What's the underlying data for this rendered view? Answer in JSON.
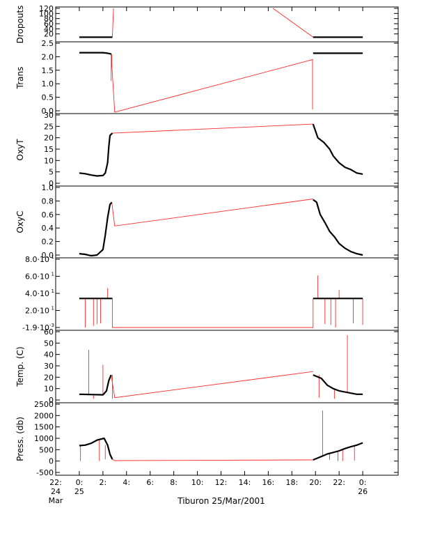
{
  "chart_data": {
    "type": "line",
    "xaxis": {
      "label": "Tiburon 25/Mar/2001",
      "range": [
        -2,
        27
      ],
      "ticks": [
        {
          "x": -2,
          "lines": [
            "22:",
            "24",
            "Mar"
          ]
        },
        {
          "x": 0,
          "lines": [
            "0:",
            "25"
          ]
        },
        {
          "x": 2,
          "lines": [
            "2:"
          ]
        },
        {
          "x": 4,
          "lines": [
            "4:"
          ]
        },
        {
          "x": 6,
          "lines": [
            "6:"
          ]
        },
        {
          "x": 8,
          "lines": [
            "8:"
          ]
        },
        {
          "x": 10,
          "lines": [
            "10:"
          ]
        },
        {
          "x": 12,
          "lines": [
            "12:"
          ]
        },
        {
          "x": 14,
          "lines": [
            "14:"
          ]
        },
        {
          "x": 16,
          "lines": [
            "16:"
          ]
        },
        {
          "x": 18,
          "lines": [
            "18:"
          ]
        },
        {
          "x": 20,
          "lines": [
            "20:"
          ]
        },
        {
          "x": 22,
          "lines": [
            "22:"
          ]
        },
        {
          "x": 24,
          "lines": [
            "0:",
            "26"
          ]
        }
      ]
    },
    "panels": [
      {
        "ylabel": "Dropouts",
        "ylim": [
          0,
          120
        ],
        "ticks": [
          {
            "v": 20,
            "label": "20"
          },
          {
            "v": 40,
            "label": "40"
          },
          {
            "v": 60,
            "label": "60"
          },
          {
            "v": 80,
            "label": "80"
          },
          {
            "v": 100,
            "label": "100"
          },
          {
            "v": 120,
            "label": "120"
          }
        ],
        "black": [
          [
            [
              0,
              7
            ],
            [
              2.8,
              7
            ]
          ],
          [
            [
              19.8,
              7
            ],
            [
              24,
              7
            ]
          ]
        ],
        "red": [
          [
            [
              2.8,
              7
            ],
            [
              2.9,
              120
            ]
          ],
          [
            [
              16.4,
              120
            ],
            [
              19.8,
              7
            ]
          ]
        ],
        "spikes": []
      },
      {
        "ylabel": "Trans",
        "ylim": [
          0,
          2.5
        ],
        "ticks": [
          {
            "v": 0,
            "label": "0.0"
          },
          {
            "v": 0.5,
            "label": "0.5"
          },
          {
            "v": 1.0,
            "label": "1.0"
          },
          {
            "v": 1.5,
            "label": "1.5"
          },
          {
            "v": 2.0,
            "label": "2.0"
          },
          {
            "v": 2.5,
            "label": "2.5"
          }
        ],
        "black": [
          [
            [
              0,
              2.15
            ],
            [
              2.0,
              2.15
            ],
            [
              2.4,
              2.13
            ],
            [
              2.7,
              2.1
            ]
          ],
          [
            [
              19.8,
              2.13
            ],
            [
              24,
              2.13
            ]
          ]
        ],
        "red": [
          [
            [
              2.7,
              2.1
            ],
            [
              3.0,
              -0.1
            ],
            [
              19.8,
              1.9
            ]
          ]
        ],
        "spikes": [
          [
            2.7,
            2.1,
            1.1
          ],
          [
            2.75,
            2.1,
            1.6
          ],
          [
            19.75,
            1.9,
            0.05
          ]
        ]
      },
      {
        "ylabel": "OxyT",
        "ylim": [
          0,
          30
        ],
        "ticks": [
          {
            "v": 0,
            "label": "0"
          },
          {
            "v": 5,
            "label": "5"
          },
          {
            "v": 10,
            "label": "10"
          },
          {
            "v": 15,
            "label": "15"
          },
          {
            "v": 20,
            "label": "20"
          },
          {
            "v": 25,
            "label": "25"
          },
          {
            "v": 30,
            "label": "30"
          }
        ],
        "black": [
          [
            [
              0,
              4.5
            ],
            [
              0.5,
              4.2
            ],
            [
              1.0,
              3.6
            ],
            [
              1.5,
              3.2
            ],
            [
              2.0,
              3.4
            ],
            [
              2.2,
              4.5
            ],
            [
              2.4,
              9
            ],
            [
              2.5,
              16
            ],
            [
              2.6,
              21
            ],
            [
              2.8,
              22
            ]
          ],
          [
            [
              19.8,
              26
            ],
            [
              20.2,
              20
            ],
            [
              20.7,
              18
            ],
            [
              21.2,
              15
            ],
            [
              21.5,
              12
            ],
            [
              22.0,
              9
            ],
            [
              22.5,
              7
            ],
            [
              23.0,
              6
            ],
            [
              23.5,
              4.5
            ],
            [
              24,
              4
            ]
          ]
        ],
        "red": [
          [
            [
              2.8,
              22
            ],
            [
              19.8,
              26
            ]
          ]
        ],
        "spikes": []
      },
      {
        "ylabel": "OxyC",
        "ylim": [
          0,
          1.0
        ],
        "ticks": [
          {
            "v": 0,
            "label": "0.0"
          },
          {
            "v": 0.2,
            "label": "0.2"
          },
          {
            "v": 0.4,
            "label": "0.4"
          },
          {
            "v": 0.6,
            "label": "0.6"
          },
          {
            "v": 0.8,
            "label": "0.8"
          },
          {
            "v": 1.0,
            "label": "1.0"
          }
        ],
        "black": [
          [
            [
              0,
              0.02
            ],
            [
              0.5,
              0.01
            ],
            [
              1.0,
              -0.01
            ],
            [
              1.5,
              0.0
            ],
            [
              2.0,
              0.08
            ],
            [
              2.2,
              0.3
            ],
            [
              2.4,
              0.55
            ],
            [
              2.6,
              0.75
            ],
            [
              2.75,
              0.78
            ]
          ],
          [
            [
              19.8,
              0.82
            ],
            [
              20.1,
              0.78
            ],
            [
              20.4,
              0.6
            ],
            [
              20.8,
              0.48
            ],
            [
              21.2,
              0.35
            ],
            [
              21.6,
              0.27
            ],
            [
              22.0,
              0.17
            ],
            [
              22.5,
              0.1
            ],
            [
              23.0,
              0.05
            ],
            [
              23.5,
              0.02
            ],
            [
              24,
              0.0
            ]
          ]
        ],
        "red": [
          [
            [
              2.75,
              0.78
            ],
            [
              3.0,
              0.43
            ],
            [
              19.8,
              0.83
            ]
          ]
        ],
        "spikes": []
      },
      {
        "ylabel": "",
        "ylim": [
          -0.0019,
          80
        ],
        "ticks": [
          {
            "v": -0.0019,
            "label": "-1.9·10",
            "sup": "-3"
          },
          {
            "v": 20,
            "label": "2.0·10",
            "sup": "1"
          },
          {
            "v": 40,
            "label": "4.0·10",
            "sup": "1"
          },
          {
            "v": 60,
            "label": "6.0·10",
            "sup": "1"
          },
          {
            "v": 80,
            "label": "8.0·10",
            "sup": "1"
          }
        ],
        "black": [
          [
            [
              0,
              34
            ],
            [
              2.8,
              34
            ]
          ],
          [
            [
              19.8,
              34
            ],
            [
              24,
              34
            ]
          ]
        ],
        "red": [
          [
            [
              2.8,
              34
            ],
            [
              2.8,
              0
            ],
            [
              19.8,
              0
            ],
            [
              19.8,
              34
            ]
          ]
        ],
        "spikes": [
          [
            0.5,
            34,
            0
          ],
          [
            1.2,
            34,
            2
          ],
          [
            1.5,
            34,
            4
          ],
          [
            1.8,
            34,
            5
          ],
          [
            2.4,
            34,
            46
          ],
          [
            20.2,
            34,
            61
          ],
          [
            20.8,
            34,
            4
          ],
          [
            21.3,
            34,
            3
          ],
          [
            21.7,
            34,
            0
          ],
          [
            22.0,
            34,
            44
          ],
          [
            23.2,
            34,
            5
          ],
          [
            24,
            34,
            3
          ]
        ]
      },
      {
        "ylabel": "Temp. (C)",
        "ylim": [
          0,
          60
        ],
        "ticks": [
          {
            "v": 0,
            "label": "0"
          },
          {
            "v": 10,
            "label": "10"
          },
          {
            "v": 20,
            "label": "20"
          },
          {
            "v": 30,
            "label": "30"
          },
          {
            "v": 40,
            "label": "40"
          },
          {
            "v": 50,
            "label": "50"
          },
          {
            "v": 60,
            "label": "60"
          }
        ],
        "black": [
          [
            [
              0,
              5
            ],
            [
              1.0,
              4.8
            ],
            [
              2.0,
              4.5
            ],
            [
              2.3,
              8
            ],
            [
              2.5,
              17
            ],
            [
              2.7,
              22
            ]
          ],
          [
            [
              19.8,
              22
            ],
            [
              20.5,
              19
            ],
            [
              21.0,
              13
            ],
            [
              21.5,
              10
            ],
            [
              22.0,
              8
            ],
            [
              22.5,
              7
            ],
            [
              23.0,
              6
            ],
            [
              23.5,
              5
            ],
            [
              24,
              5
            ]
          ]
        ],
        "red": [
          [
            [
              2.7,
              22
            ],
            [
              3.0,
              2
            ],
            [
              19.8,
              25
            ]
          ]
        ],
        "spikes": [
          [
            0.8,
            5,
            44
          ],
          [
            1.2,
            5,
            1
          ],
          [
            2.0,
            5,
            31
          ],
          [
            2.8,
            22,
            1
          ],
          [
            20.3,
            22,
            2
          ],
          [
            21.6,
            10,
            1
          ],
          [
            22.7,
            7,
            57
          ]
        ]
      },
      {
        "ylabel": "Press. (db)",
        "ylim": [
          -500,
          2500
        ],
        "ticks": [
          {
            "v": -500,
            "label": "-500"
          },
          {
            "v": 0,
            "label": "0"
          },
          {
            "v": 500,
            "label": "500"
          },
          {
            "v": 1000,
            "label": "1000"
          },
          {
            "v": 1500,
            "label": "1500"
          },
          {
            "v": 2000,
            "label": "2000"
          },
          {
            "v": 2500,
            "label": "2500"
          }
        ],
        "black": [
          [
            [
              0,
              680
            ],
            [
              0.5,
              700
            ],
            [
              1.0,
              780
            ],
            [
              1.5,
              920
            ],
            [
              2.1,
              1000
            ],
            [
              2.4,
              700
            ],
            [
              2.6,
              300
            ],
            [
              2.8,
              80
            ]
          ],
          [
            [
              19.8,
              50
            ],
            [
              20.5,
              200
            ],
            [
              21.0,
              310
            ],
            [
              21.5,
              380
            ],
            [
              22.0,
              450
            ],
            [
              22.5,
              550
            ],
            [
              23.0,
              630
            ],
            [
              23.5,
              700
            ],
            [
              24,
              800
            ]
          ]
        ],
        "red": [
          [
            [
              2.8,
              80
            ],
            [
              3.0,
              20
            ],
            [
              19.8,
              50
            ]
          ]
        ],
        "spikes": [
          [
            0.1,
            680,
            0
          ],
          [
            1.7,
            920,
            0
          ],
          [
            2.2,
            700,
            80
          ],
          [
            20.6,
            200,
            2220
          ],
          [
            21.2,
            310,
            50
          ],
          [
            21.9,
            440,
            0
          ],
          [
            22.3,
            480,
            0
          ],
          [
            23.3,
            700,
            20
          ]
        ]
      }
    ]
  }
}
